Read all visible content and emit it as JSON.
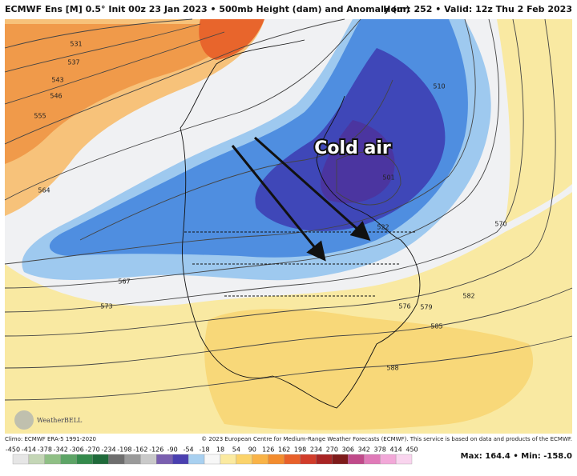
{
  "header": {
    "left": "ECMWF Ens [M] 0.5° Init 00z 23 Jan 2023 • 500mb Height (dam) and Anomaly (m)",
    "right": "Hour: 252 • Valid: 12z Thu 2 Feb 2023"
  },
  "annotation": "Cold air",
  "contour_labels": [
    "531",
    "537",
    "543",
    "546",
    "555",
    "564",
    "567",
    "573",
    "510",
    "501",
    "522",
    "576",
    "579",
    "582",
    "585",
    "588",
    "570"
  ],
  "logo": "WeatherBELL",
  "footer": {
    "climo": "Climo: ECMWF ERA-5 1991-2020",
    "copyright": "© 2023 European Centre for Medium-Range Weather Forecasts (ECMWF). This service is based on data and products of the ECMWF.",
    "stats": "Max: 164.4 • Min: -158.0"
  },
  "colorbar": {
    "labels": [
      -450,
      -414,
      -378,
      -342,
      -306,
      -270,
      -234,
      -198,
      -162,
      -126,
      -90,
      -54,
      -18,
      18,
      54,
      90,
      126,
      162,
      198,
      234,
      270,
      306,
      342,
      378,
      414,
      450
    ]
  }
}
